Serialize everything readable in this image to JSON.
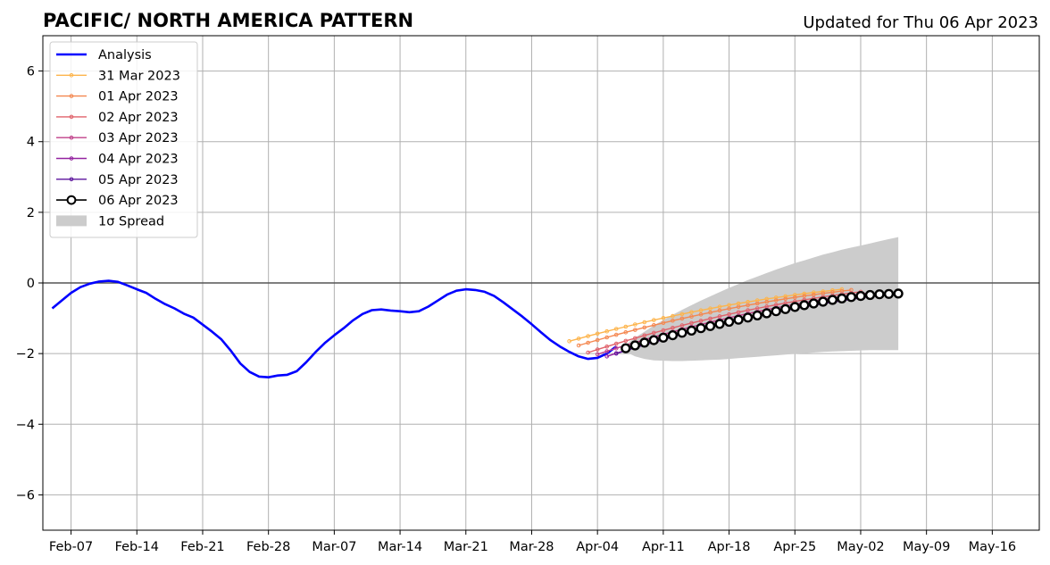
{
  "chart_data": {
    "type": "line",
    "title": "PACIFIC/ NORTH AMERICA PATTERN",
    "subtitle": "Updated for Thu 06 Apr 2023",
    "xlabel": "",
    "ylabel": "",
    "x_range": [
      "2023-02-04",
      "2023-05-21"
    ],
    "ylim": [
      -7,
      7
    ],
    "grid": true,
    "legend_position": "top-left",
    "x_ticks": [
      {
        "date": "2023-02-07",
        "label": "Feb-07"
      },
      {
        "date": "2023-02-14",
        "label": "Feb-14"
      },
      {
        "date": "2023-02-21",
        "label": "Feb-21"
      },
      {
        "date": "2023-02-28",
        "label": "Feb-28"
      },
      {
        "date": "2023-03-07",
        "label": "Mar-07"
      },
      {
        "date": "2023-03-14",
        "label": "Mar-14"
      },
      {
        "date": "2023-03-21",
        "label": "Mar-21"
      },
      {
        "date": "2023-03-28",
        "label": "Mar-28"
      },
      {
        "date": "2023-04-04",
        "label": "Apr-04"
      },
      {
        "date": "2023-04-11",
        "label": "Apr-11"
      },
      {
        "date": "2023-04-18",
        "label": "Apr-18"
      },
      {
        "date": "2023-04-25",
        "label": "Apr-25"
      },
      {
        "date": "2023-05-02",
        "label": "May-02"
      },
      {
        "date": "2023-05-09",
        "label": "May-09"
      },
      {
        "date": "2023-05-16",
        "label": "May-16"
      }
    ],
    "y_ticks": [
      {
        "value": 6,
        "label": "6"
      },
      {
        "value": 4,
        "label": "4"
      },
      {
        "value": 2,
        "label": "2"
      },
      {
        "value": 0,
        "label": "0"
      },
      {
        "value": -2,
        "label": "−2"
      },
      {
        "value": -4,
        "label": "−4"
      },
      {
        "value": -6,
        "label": "−6"
      }
    ],
    "analysis": {
      "name": "Analysis",
      "color": "#0000ff",
      "start_date": "2023-02-05",
      "values": [
        -0.72,
        -0.5,
        -0.28,
        -0.12,
        -0.02,
        0.04,
        0.06,
        0.03,
        -0.07,
        -0.18,
        -0.28,
        -0.45,
        -0.6,
        -0.72,
        -0.87,
        -0.98,
        -1.18,
        -1.38,
        -1.6,
        -1.92,
        -2.28,
        -2.52,
        -2.65,
        -2.67,
        -2.62,
        -2.6,
        -2.5,
        -2.25,
        -1.96,
        -1.7,
        -1.48,
        -1.28,
        -1.06,
        -0.88,
        -0.77,
        -0.75,
        -0.78,
        -0.8,
        -0.83,
        -0.8,
        -0.67,
        -0.5,
        -0.33,
        -0.22,
        -0.18,
        -0.2,
        -0.25,
        -0.37,
        -0.55,
        -0.75,
        -0.95,
        -1.17,
        -1.4,
        -1.62,
        -1.8,
        -1.95,
        -2.08,
        -2.15,
        -2.12,
        -2.0,
        -1.8
      ]
    },
    "forecasts": [
      {
        "name": "31 Mar 2023",
        "color": "#fdb44b",
        "start_date": "2023-04-01",
        "start_value": -1.65,
        "end_date": "2023-04-30",
        "end_value": -0.18,
        "curve": 0.45
      },
      {
        "name": "01 Apr 2023",
        "color": "#f4874f",
        "start_date": "2023-04-02",
        "start_value": -1.77,
        "end_date": "2023-05-01",
        "end_value": -0.2,
        "curve": 0.45
      },
      {
        "name": "02 Apr 2023",
        "color": "#e0626a",
        "start_date": "2023-04-03",
        "start_value": -1.97,
        "end_date": "2023-05-02",
        "end_value": -0.25,
        "curve": 0.45
      },
      {
        "name": "03 Apr 2023",
        "color": "#c0408a",
        "start_date": "2023-04-04",
        "start_value": -2.02,
        "end_date": "2023-05-03",
        "end_value": -0.28,
        "curve": 0.45
      },
      {
        "name": "04 Apr 2023",
        "color": "#9423a0",
        "start_date": "2023-04-05",
        "start_value": -2.08,
        "end_date": "2023-05-04",
        "end_value": -0.3,
        "curve": 0.45
      },
      {
        "name": "05 Apr 2023",
        "color": "#5b139c",
        "start_date": "2023-04-06",
        "start_value": -2.0,
        "end_date": "2023-05-05",
        "end_value": -0.32,
        "curve": 0.45
      }
    ],
    "current_forecast": {
      "name": "06 Apr 2023",
      "color": "#000000",
      "marker_face": "#ffffff",
      "start_date": "2023-04-07",
      "values": [
        -1.85,
        -1.77,
        -1.69,
        -1.62,
        -1.55,
        -1.48,
        -1.41,
        -1.35,
        -1.28,
        -1.22,
        -1.16,
        -1.1,
        -1.04,
        -0.98,
        -0.92,
        -0.86,
        -0.8,
        -0.74,
        -0.68,
        -0.63,
        -0.58,
        -0.53,
        -0.48,
        -0.44,
        -0.4,
        -0.37,
        -0.34,
        -0.32,
        -0.31,
        -0.3
      ]
    },
    "spread": {
      "name": "1σ Spread",
      "color": "#cccccc",
      "start_date": "2023-04-07",
      "upper": [
        -1.75,
        -1.55,
        -1.38,
        -1.2,
        -1.05,
        -0.9,
        -0.76,
        -0.63,
        -0.5,
        -0.38,
        -0.26,
        -0.14,
        -0.03,
        0.08,
        0.18,
        0.28,
        0.38,
        0.47,
        0.56,
        0.64,
        0.72,
        0.8,
        0.87,
        0.94,
        1.0,
        1.06,
        1.12,
        1.18,
        1.24,
        1.3
      ],
      "lower": [
        -1.95,
        -2.08,
        -2.15,
        -2.19,
        -2.2,
        -2.21,
        -2.21,
        -2.2,
        -2.19,
        -2.18,
        -2.17,
        -2.15,
        -2.13,
        -2.11,
        -2.09,
        -2.07,
        -2.05,
        -2.03,
        -2.01,
        -1.99,
        -1.97,
        -1.95,
        -1.94,
        -1.93,
        -1.92,
        -1.91,
        -1.9,
        -1.9,
        -1.9,
        -1.9
      ]
    }
  }
}
